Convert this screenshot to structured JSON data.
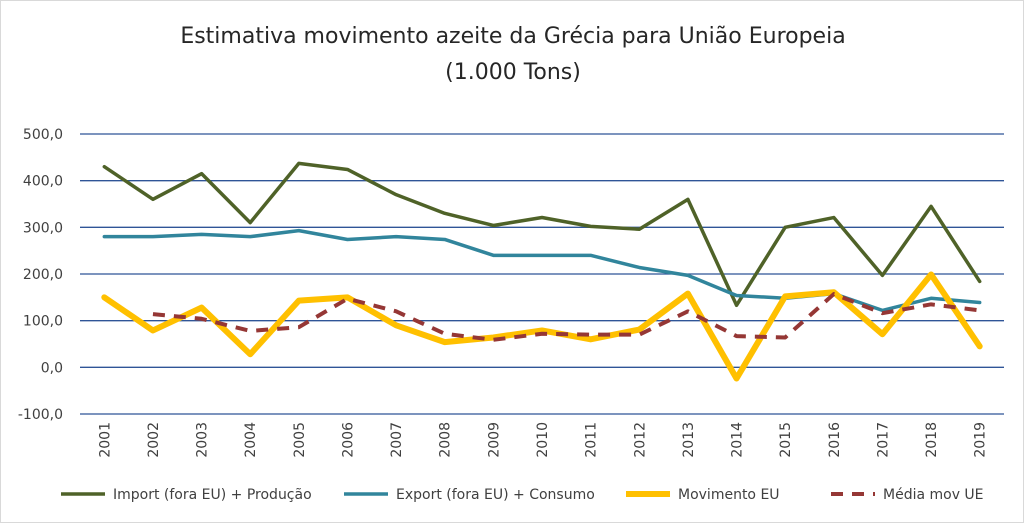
{
  "chart_data": {
    "type": "line",
    "title": "Estimativa movimento azeite da Grécia para União Europeia",
    "subtitle": "(1.000 Tons)",
    "xlabel": "",
    "ylabel": "",
    "ylim": [
      -100,
      500
    ],
    "yticks": [
      "500,0",
      "400,0",
      "300,0",
      "200,0",
      "100,0",
      "0,0",
      "-100,0"
    ],
    "ytick_values": [
      500,
      400,
      300,
      200,
      100,
      0,
      -100
    ],
    "grid": true,
    "legend_position": "bottom",
    "categories": [
      "2001",
      "2002",
      "2003",
      "2004",
      "2005",
      "2006",
      "2007",
      "2008",
      "2009",
      "2010",
      "2011",
      "2012",
      "2013",
      "2014",
      "2015",
      "2016",
      "2017",
      "2018",
      "2019"
    ],
    "series": [
      {
        "name": "Import (fora EU) + Produção",
        "color": "#4f6228",
        "dash": false,
        "values": [
          430,
          360,
          415,
          310,
          437,
          424,
          370,
          330,
          304,
          321,
          302,
          296,
          360,
          133,
          300,
          321,
          197,
          345,
          184
        ]
      },
      {
        "name": "Export (fora EU) + Consumo",
        "color": "#31859c",
        "dash": false,
        "values": [
          280,
          280,
          285,
          280,
          293,
          274,
          280,
          274,
          240,
          240,
          240,
          214,
          197,
          154,
          148,
          158,
          122,
          148,
          139
        ]
      },
      {
        "name": "Movimento EU",
        "color": "#ffc000",
        "dash": false,
        "values": [
          150,
          79,
          128,
          28,
          143,
          150,
          90,
          54,
          64,
          79,
          60,
          81,
          158,
          -24,
          152,
          161,
          71,
          199,
          45
        ]
      },
      {
        "name": "Média mov UE",
        "color": "#953735",
        "dash": true,
        "values": [
          null,
          114,
          104,
          78,
          86,
          147,
          120,
          72,
          59,
          72,
          70,
          70,
          120,
          67,
          64,
          157,
          116,
          135,
          122
        ]
      }
    ]
  }
}
